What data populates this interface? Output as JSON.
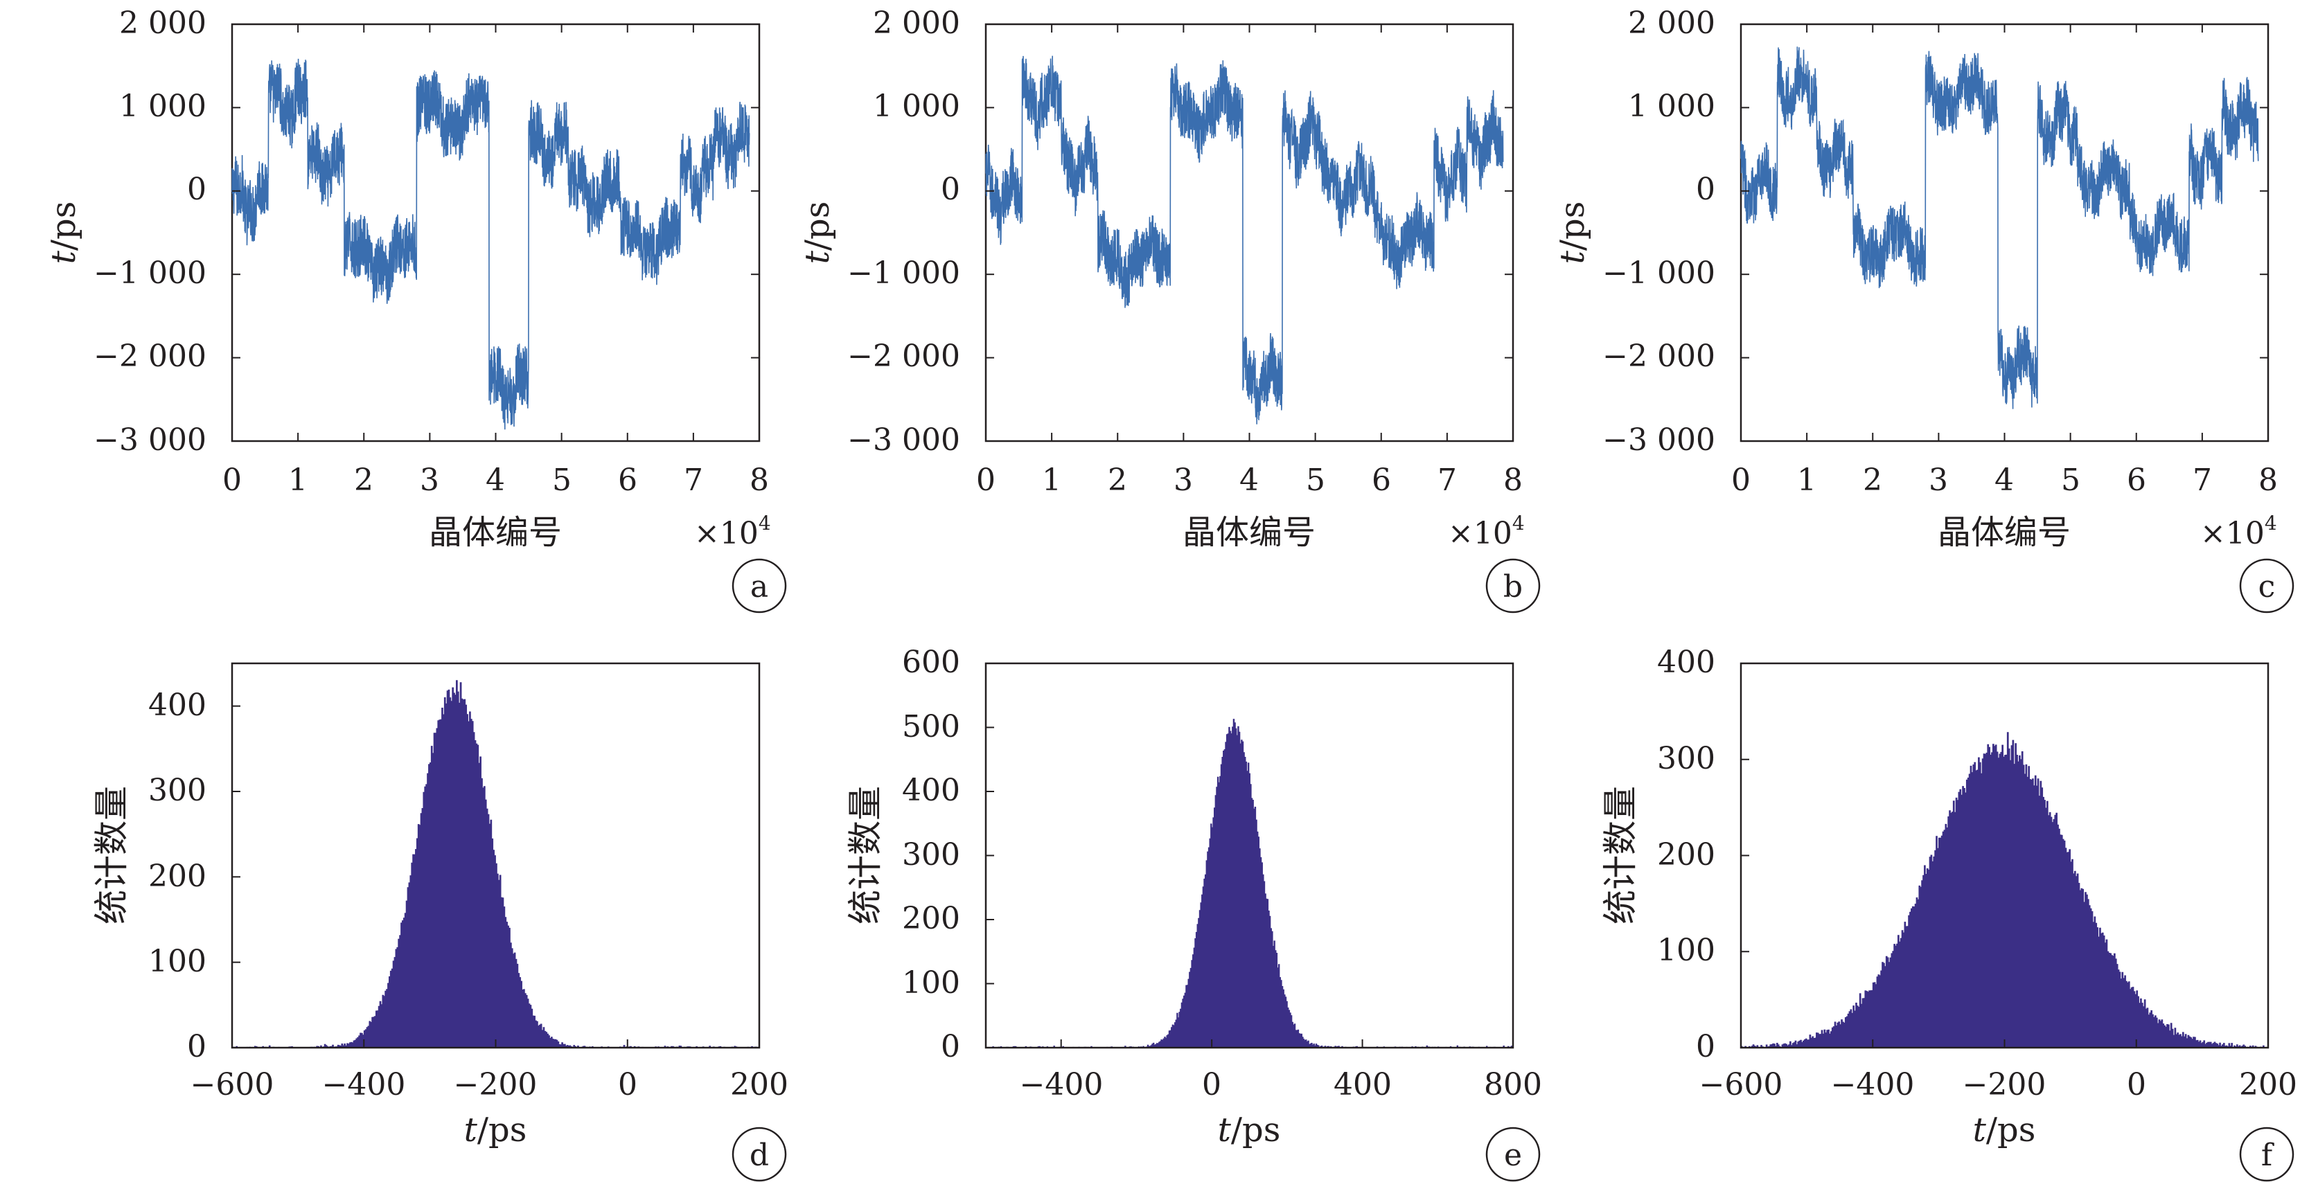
{
  "colors": {
    "trace": "#3a6eaf",
    "hist": "#3b2f86",
    "axis": "#231f20",
    "background": "#ffffff"
  },
  "chart_data": [
    {
      "panel": "a",
      "type": "line",
      "xlabel": "晶体编号",
      "ylabel_italic": "t",
      "ylabel_unit": "/ps",
      "exponent_label": "×10",
      "exponent_sup": "4",
      "xlim": [
        0,
        8
      ],
      "ylim": [
        -3000,
        2000
      ],
      "xticks": [
        0,
        1,
        2,
        3,
        4,
        5,
        6,
        7,
        8
      ],
      "xtick_labels": [
        "0",
        "1",
        "2",
        "3",
        "4",
        "5",
        "6",
        "7",
        "8"
      ],
      "yticks": [
        -3000,
        -2000,
        -1000,
        0,
        1000,
        2000
      ],
      "ytick_labels": [
        "−3 000",
        "−2 000",
        "−1 000",
        "0",
        "1 000",
        "2 000"
      ],
      "noise": 520,
      "segments": [
        {
          "x0": 0.0,
          "x1": 0.55,
          "y": -100
        },
        {
          "x0": 0.55,
          "x1": 1.15,
          "y": 1050
        },
        {
          "x0": 1.15,
          "x1": 1.7,
          "y": 300
        },
        {
          "x0": 1.7,
          "x1": 2.8,
          "y": -800
        },
        {
          "x0": 2.8,
          "x1": 3.9,
          "y": 900
        },
        {
          "x0": 3.9,
          "x1": 4.5,
          "y": -2350
        },
        {
          "x0": 4.5,
          "x1": 5.1,
          "y": 550
        },
        {
          "x0": 5.1,
          "x1": 5.9,
          "y": 0
        },
        {
          "x0": 5.9,
          "x1": 6.8,
          "y": -600
        },
        {
          "x0": 6.8,
          "x1": 7.3,
          "y": 150
        },
        {
          "x0": 7.3,
          "x1": 7.85,
          "y": 550
        }
      ]
    },
    {
      "panel": "b",
      "type": "line",
      "xlabel": "晶体编号",
      "ylabel_italic": "t",
      "ylabel_unit": "/ps",
      "exponent_label": "×10",
      "exponent_sup": "4",
      "xlim": [
        0,
        8
      ],
      "ylim": [
        -3000,
        2000
      ],
      "xticks": [
        0,
        1,
        2,
        3,
        4,
        5,
        6,
        7,
        8
      ],
      "xtick_labels": [
        "0",
        "1",
        "2",
        "3",
        "4",
        "5",
        "6",
        "7",
        "8"
      ],
      "yticks": [
        -3000,
        -2000,
        -1000,
        0,
        1000,
        2000
      ],
      "ytick_labels": [
        "−3 000",
        "−2 000",
        "−1 000",
        "0",
        "1 000",
        "2 000"
      ],
      "noise": 500,
      "segments": [
        {
          "x0": 0.0,
          "x1": 0.55,
          "y": -50
        },
        {
          "x0": 0.55,
          "x1": 1.15,
          "y": 1100
        },
        {
          "x0": 1.15,
          "x1": 1.7,
          "y": 300
        },
        {
          "x0": 1.7,
          "x1": 2.8,
          "y": -800
        },
        {
          "x0": 2.8,
          "x1": 3.9,
          "y": 950
        },
        {
          "x0": 3.9,
          "x1": 4.5,
          "y": -2250
        },
        {
          "x0": 4.5,
          "x1": 5.1,
          "y": 600
        },
        {
          "x0": 5.1,
          "x1": 5.9,
          "y": 50
        },
        {
          "x0": 5.9,
          "x1": 6.8,
          "y": -600
        },
        {
          "x0": 6.8,
          "x1": 7.3,
          "y": 200
        },
        {
          "x0": 7.3,
          "x1": 7.85,
          "y": 600
        }
      ]
    },
    {
      "panel": "c",
      "type": "line",
      "xlabel": "晶体编号",
      "ylabel_italic": "t",
      "ylabel_unit": "/ps",
      "exponent_label": "×10",
      "exponent_sup": "4",
      "xlim": [
        0,
        8
      ],
      "ylim": [
        -3000,
        2000
      ],
      "xticks": [
        0,
        1,
        2,
        3,
        4,
        5,
        6,
        7,
        8
      ],
      "xtick_labels": [
        "0",
        "1",
        "2",
        "3",
        "4",
        "5",
        "6",
        "7",
        "8"
      ],
      "yticks": [
        -3000,
        -2000,
        -1000,
        0,
        1000,
        2000
      ],
      "ytick_labels": [
        "−3 000",
        "−2 000",
        "−1 000",
        "0",
        "1 000",
        "2 000"
      ],
      "noise": 480,
      "segments": [
        {
          "x0": 0.0,
          "x1": 0.55,
          "y": 100
        },
        {
          "x0": 0.55,
          "x1": 1.15,
          "y": 1250
        },
        {
          "x0": 1.15,
          "x1": 1.7,
          "y": 400
        },
        {
          "x0": 1.7,
          "x1": 2.8,
          "y": -650
        },
        {
          "x0": 2.8,
          "x1": 3.9,
          "y": 1150
        },
        {
          "x0": 3.9,
          "x1": 4.5,
          "y": -2100
        },
        {
          "x0": 4.5,
          "x1": 5.1,
          "y": 800
        },
        {
          "x0": 5.1,
          "x1": 5.9,
          "y": 150
        },
        {
          "x0": 5.9,
          "x1": 6.8,
          "y": -500
        },
        {
          "x0": 6.8,
          "x1": 7.3,
          "y": 300
        },
        {
          "x0": 7.3,
          "x1": 7.85,
          "y": 850
        }
      ]
    },
    {
      "panel": "d",
      "type": "bar",
      "xlabel_italic": "t",
      "xlabel_unit": "/ps",
      "ylabel": "统计数量",
      "xlim": [
        -600,
        200
      ],
      "ylim": [
        0,
        450
      ],
      "xticks": [
        -600,
        -400,
        -200,
        0,
        200
      ],
      "xtick_labels": [
        "−600",
        "−400",
        "−200",
        "0",
        "200"
      ],
      "yticks": [
        0,
        100,
        200,
        300,
        400
      ],
      "ytick_labels": [
        "0",
        "100",
        "200",
        "300",
        "400"
      ],
      "distribution": {
        "center": -262,
        "peak": 420,
        "sigma": 55,
        "bin_width": 2,
        "noise": 14
      }
    },
    {
      "panel": "e",
      "type": "bar",
      "xlabel_italic": "t",
      "xlabel_unit": "/ps",
      "ylabel": "统计数量",
      "xlim": [
        -600,
        800
      ],
      "ylim": [
        0,
        600
      ],
      "xticks": [
        -400,
        0,
        400,
        800
      ],
      "xtick_labels": [
        "−400",
        "0",
        "400",
        "800"
      ],
      "yticks": [
        0,
        100,
        200,
        300,
        400,
        500,
        600
      ],
      "ytick_labels": [
        "0",
        "100",
        "200",
        "300",
        "400",
        "500",
        "600"
      ],
      "distribution": {
        "center": 60,
        "peak": 500,
        "sigma": 70,
        "bin_width": 3,
        "noise": 16
      }
    },
    {
      "panel": "f",
      "type": "bar",
      "xlabel_italic": "t",
      "xlabel_unit": "/ps",
      "ylabel": "统计数量",
      "xlim": [
        -600,
        200
      ],
      "ylim": [
        0,
        400
      ],
      "xticks": [
        -600,
        -400,
        -200,
        0,
        200
      ],
      "xtick_labels": [
        "−600",
        "−400",
        "−200",
        "0",
        "200"
      ],
      "yticks": [
        0,
        100,
        200,
        300,
        400
      ],
      "ytick_labels": [
        "0",
        "100",
        "200",
        "300",
        "400"
      ],
      "distribution": {
        "center": -205,
        "peak": 310,
        "sigma": 110,
        "bin_width": 2,
        "noise": 14
      }
    }
  ]
}
